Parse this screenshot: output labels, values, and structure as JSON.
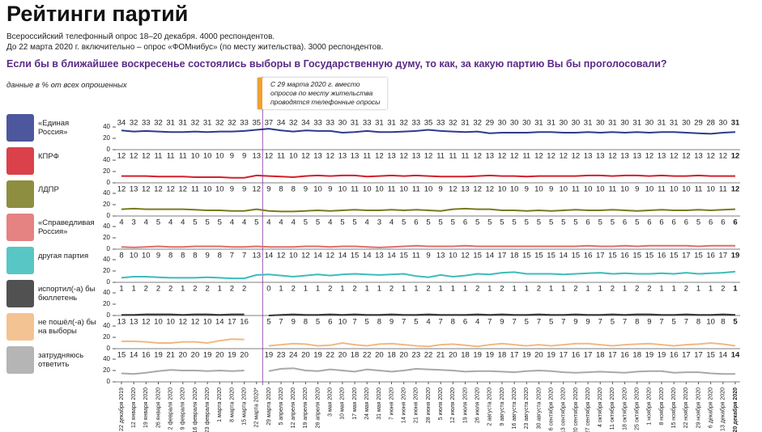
{
  "title": "Рейтинги партий",
  "subtitle": [
    "Всероссийский телефонный опрос 18–20 декабря. 4000 респондентов.",
    "До 22 марта 2020 г. включительно – опрос «ФОМнибус» (по месту жительства). 3000 респондентов."
  ],
  "question": "Если бы в ближайшее воскресенье состоялись выборы в Государственную думу, то как, за какую партию Вы бы проголосовали?",
  "units": "данные в % от всех опрошенных",
  "annotation": "С 29 марта 2020 г. вместо опросов по месту жительства проводятся телефонные опросы",
  "chart_data": {
    "type": "line",
    "categories": [
      "22 декабря 2019",
      "12 января 2020",
      "19 января 2020",
      "26 января 2020",
      "2 февраля 2020",
      "9 февраля 2020",
      "16 февраля 2020",
      "23 февраля 2020",
      "1 марта 2020",
      "8 марта 2020",
      "15 марта 2020",
      "22 марта 2020*",
      "29 марта 2020",
      "5 апреля 2020",
      "12 апреля 2020",
      "19 апреля 2020",
      "26 апреля 2020",
      "3 мая 2020",
      "10 мая 2020",
      "17 мая 2020",
      "24 мая 2020",
      "31 мая 2020",
      "7 июня 2020",
      "14 июня 2020",
      "21 июня 2020",
      "28 июня 2020",
      "5 июля 2020",
      "12 июля 2020",
      "19 июля 2020",
      "26 июля 2020",
      "2 августа 2020",
      "9 августа 2020",
      "16 августа 2020",
      "23 августа 2020",
      "30 августа 2020",
      "6 сентября 2020",
      "13 сентября 2020",
      "20 сентября 2020",
      "27 сентября 2020",
      "4 октября 2020",
      "11 октября 2020",
      "18 октября 2020",
      "25 октября 2020",
      "1 ноября 2020",
      "8 ноября 2020",
      "15 ноября 2020",
      "22 ноября 2020",
      "29 ноября 2020",
      "6 декабря 2020",
      "13 декабря 2020",
      "20 декабря 2020"
    ],
    "ylim": [
      0,
      40
    ],
    "yticks": [
      0,
      20,
      40
    ],
    "series": [
      {
        "name": "«Единая Россия»",
        "color": "#2e3a8c",
        "values": [
          34,
          32,
          33,
          32,
          31,
          31,
          32,
          31,
          32,
          32,
          33,
          35,
          37,
          34,
          32,
          34,
          33,
          33,
          30,
          31,
          33,
          31,
          31,
          32,
          33,
          35,
          33,
          32,
          31,
          32,
          29,
          30,
          30,
          30,
          31,
          31,
          30,
          30,
          31,
          30,
          31,
          30,
          31,
          30,
          31,
          31,
          30,
          29,
          28,
          30,
          31
        ]
      },
      {
        "name": "КПРФ",
        "color": "#d4202a",
        "values": [
          12,
          12,
          12,
          11,
          11,
          11,
          10,
          10,
          10,
          9,
          9,
          13,
          12,
          11,
          10,
          12,
          13,
          12,
          13,
          13,
          11,
          12,
          13,
          12,
          13,
          12,
          11,
          11,
          11,
          12,
          13,
          12,
          12,
          11,
          12,
          12,
          12,
          12,
          13,
          13,
          12,
          13,
          13,
          12,
          13,
          12,
          12,
          13,
          12,
          12,
          12
        ]
      },
      {
        "name": "ЛДПР",
        "color": "#7a7a1e",
        "values": [
          12,
          13,
          12,
          12,
          12,
          12,
          11,
          10,
          10,
          9,
          9,
          12,
          9,
          8,
          8,
          9,
          10,
          9,
          10,
          11,
          10,
          10,
          11,
          10,
          11,
          10,
          9,
          12,
          13,
          12,
          12,
          10,
          10,
          9,
          10,
          9,
          10,
          11,
          10,
          10,
          11,
          10,
          9,
          10,
          11,
          10,
          10,
          11,
          10,
          11,
          12
        ]
      },
      {
        "name": "«Справедливая Россия»",
        "color": "#e06c6c",
        "values": [
          4,
          3,
          4,
          5,
          4,
          4,
          5,
          5,
          5,
          4,
          4,
          5,
          4,
          4,
          4,
          5,
          5,
          4,
          5,
          5,
          4,
          3,
          4,
          5,
          6,
          5,
          5,
          5,
          6,
          5,
          5,
          5,
          5,
          5,
          5,
          5,
          5,
          5,
          6,
          5,
          5,
          6,
          5,
          6,
          6,
          6,
          6,
          5,
          6,
          6,
          6
        ]
      },
      {
        "name": "другая партия",
        "color": "#3cbcbc",
        "values": [
          8,
          10,
          10,
          9,
          8,
          8,
          8,
          9,
          8,
          7,
          7,
          13,
          14,
          12,
          10,
          12,
          14,
          12,
          14,
          15,
          14,
          13,
          14,
          15,
          11,
          9,
          13,
          10,
          12,
          15,
          14,
          17,
          18,
          15,
          15,
          15,
          14,
          15,
          16,
          17,
          15,
          16,
          15,
          15,
          16,
          15,
          17,
          15,
          16,
          17,
          19
        ]
      },
      {
        "name": "испортил(-а) бы бюллетень",
        "color": "#333333",
        "values": [
          1,
          1,
          2,
          2,
          2,
          1,
          2,
          2,
          1,
          2,
          2,
          null,
          0,
          1,
          2,
          1,
          1,
          2,
          1,
          2,
          1,
          1,
          2,
          1,
          1,
          2,
          1,
          1,
          1,
          2,
          1,
          2,
          1,
          1,
          2,
          1,
          1,
          2,
          1,
          1,
          2,
          1,
          2,
          2,
          1,
          1,
          2,
          1,
          1,
          2,
          1
        ]
      },
      {
        "name": "не пошёл(-а) бы на выборы",
        "color": "#f2b880",
        "values": [
          13,
          13,
          12,
          10,
          10,
          12,
          12,
          10,
          14,
          17,
          16,
          null,
          5,
          7,
          9,
          8,
          5,
          6,
          10,
          7,
          5,
          8,
          9,
          7,
          5,
          4,
          7,
          8,
          6,
          4,
          7,
          9,
          7,
          5,
          7,
          5,
          7,
          9,
          9,
          7,
          5,
          7,
          8,
          9,
          7,
          5,
          7,
          8,
          10,
          8,
          5
        ]
      },
      {
        "name": "затрудняюсь ответить",
        "color": "#a8a8a8",
        "values": [
          15,
          14,
          16,
          19,
          21,
          20,
          20,
          19,
          20,
          19,
          20,
          null,
          19,
          23,
          24,
          20,
          19,
          22,
          20,
          18,
          22,
          20,
          18,
          20,
          23,
          22,
          21,
          20,
          18,
          19,
          19,
          18,
          17,
          19,
          20,
          19,
          17,
          16,
          17,
          18,
          17,
          16,
          18,
          19,
          19,
          16,
          17,
          17,
          15,
          14,
          14
        ]
      }
    ]
  }
}
